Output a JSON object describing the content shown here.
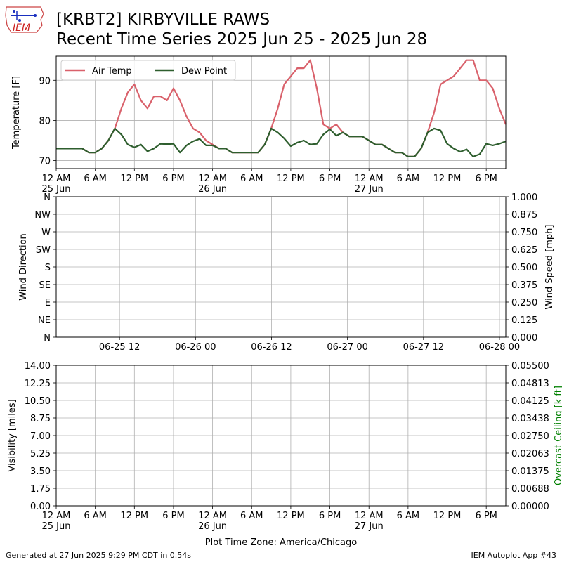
{
  "header": {
    "title_line1": "[KRBT2] KIRBYVILLE RAWS",
    "title_line2": "Recent Time Series 2025 Jun 25 - 2025 Jun 28",
    "logo_text": "IEM"
  },
  "footer": {
    "generated": "Generated at 27 Jun 2025 9:29 PM CDT in 0.54s",
    "app": "IEM Autoplot App #43"
  },
  "colors": {
    "air_temp": "#d9616b",
    "dew_point": "#2e5e2e",
    "grid": "#b0b0b0",
    "ceiling_label": "#008000"
  },
  "chart_data": [
    {
      "type": "line",
      "ylabel": "Temperature [F]",
      "ylim": [
        68,
        96
      ],
      "yticks": [
        70,
        80,
        90
      ],
      "xlim_hours": [
        0,
        69
      ],
      "xtick_labels": [
        {
          "h": 0,
          "label": "12 AM",
          "sub": "25 Jun"
        },
        {
          "h": 6,
          "label": "6 AM"
        },
        {
          "h": 12,
          "label": "12 PM"
        },
        {
          "h": 18,
          "label": "6 PM"
        },
        {
          "h": 24,
          "label": "12 AM",
          "sub": "26 Jun"
        },
        {
          "h": 30,
          "label": "6 AM"
        },
        {
          "h": 36,
          "label": "12 PM"
        },
        {
          "h": 42,
          "label": "6 PM"
        },
        {
          "h": 48,
          "label": "12 AM",
          "sub": "27 Jun"
        },
        {
          "h": 54,
          "label": "6 AM"
        },
        {
          "h": 60,
          "label": "12 PM"
        },
        {
          "h": 66,
          "label": "6 PM"
        }
      ],
      "legend": "top-left",
      "grid": true,
      "series": [
        {
          "name": "Air Temp",
          "x": [
            0,
            1,
            2,
            3,
            4,
            5,
            6,
            7,
            8,
            9,
            10,
            11,
            12,
            13,
            14,
            15,
            16,
            17,
            18,
            19,
            20,
            21,
            22,
            23,
            24,
            25,
            26,
            27,
            28,
            29,
            30,
            31,
            32,
            33,
            34,
            35,
            36,
            37,
            38,
            39,
            40,
            41,
            42,
            43,
            44,
            45,
            46,
            47,
            48,
            49,
            50,
            51,
            52,
            53,
            54,
            55,
            56,
            57,
            58,
            59,
            60,
            61,
            62,
            63,
            64,
            65,
            66,
            67,
            68,
            69
          ],
          "y": [
            73,
            73,
            73,
            73,
            73,
            72,
            72,
            73,
            75,
            78,
            83,
            87,
            89,
            85,
            83,
            86,
            86,
            85,
            88,
            85,
            81,
            78,
            77,
            75,
            74,
            73,
            73,
            72,
            72,
            72,
            72,
            72,
            74,
            78,
            83,
            89,
            91,
            93,
            93,
            95,
            88,
            79,
            78,
            79,
            77,
            76,
            76,
            76,
            75,
            74,
            74,
            73,
            72,
            72,
            71,
            71,
            73,
            77,
            82,
            89,
            90,
            91,
            93,
            95,
            95,
            90,
            90,
            88,
            83,
            79
          ]
        },
        {
          "name": "Dew Point",
          "x": [
            0,
            1,
            2,
            3,
            4,
            5,
            6,
            7,
            8,
            9,
            10,
            11,
            12,
            13,
            14,
            15,
            16,
            17,
            18,
            19,
            20,
            21,
            22,
            23,
            24,
            25,
            26,
            27,
            28,
            29,
            30,
            31,
            32,
            33,
            34,
            35,
            36,
            37,
            38,
            39,
            40,
            41,
            42,
            43,
            44,
            45,
            46,
            47,
            48,
            49,
            50,
            51,
            52,
            53,
            54,
            55,
            56,
            57,
            58,
            59,
            60,
            61,
            62,
            63,
            64,
            65,
            66,
            67,
            68,
            69
          ],
          "y": [
            73,
            73,
            73,
            73,
            73,
            72,
            72,
            73,
            75,
            78,
            76.5,
            74,
            73.3,
            74,
            72.3,
            73,
            74.2,
            74.1,
            74.2,
            72,
            73.8,
            74.8,
            75.4,
            73.8,
            73.8,
            73,
            73,
            72,
            72,
            72,
            72,
            72,
            74,
            78,
            77,
            75.5,
            73.6,
            74.5,
            75,
            74,
            74.2,
            76.5,
            77.8,
            76.2,
            77,
            76,
            76,
            76,
            75,
            74,
            74,
            73,
            72,
            72,
            71,
            71,
            73,
            77,
            78,
            77.5,
            74.2,
            73,
            72.2,
            72.8,
            71,
            71.6,
            74.2,
            73.8,
            74.2,
            74.8
          ]
        }
      ]
    },
    {
      "type": "line",
      "ylabel": "Wind Direction",
      "y2label": "Wind Speed [mph]",
      "ylim": [
        0,
        360
      ],
      "ytick_labels": [
        "N",
        "NE",
        "E",
        "SE",
        "S",
        "SW",
        "W",
        "NW",
        "N"
      ],
      "y2lim": [
        0,
        1
      ],
      "y2tick_labels": [
        "0.000",
        "0.125",
        "0.250",
        "0.375",
        "0.500",
        "0.625",
        "0.750",
        "0.875",
        "1.000"
      ],
      "xtick_labels": [
        {
          "h": 12,
          "label": "06-25 12"
        },
        {
          "h": 24,
          "label": "06-26 00"
        },
        {
          "h": 36,
          "label": "06-26 12"
        },
        {
          "h": 48,
          "label": "06-27 00"
        },
        {
          "h": 60,
          "label": "06-27 12"
        },
        {
          "h": 72,
          "label": "06-28 00"
        }
      ],
      "xlim_hours": [
        2,
        73
      ],
      "grid": true,
      "series": []
    },
    {
      "type": "line",
      "ylabel": "Visibility [miles]",
      "y2label": "Overcast Ceiling [k ft]",
      "ylim": [
        0,
        14
      ],
      "ytick_labels": [
        "0.00",
        "1.75",
        "3.50",
        "5.25",
        "7.00",
        "8.75",
        "10.50",
        "12.25",
        "14.00"
      ],
      "y2lim": [
        0,
        0.055
      ],
      "y2tick_labels": [
        "0.00000",
        "0.00688",
        "0.01375",
        "0.02063",
        "0.02750",
        "0.03438",
        "0.04125",
        "0.04813",
        "0.05500"
      ],
      "xlim_hours": [
        0,
        69
      ],
      "xtick_labels": [
        {
          "h": 0,
          "label": "12 AM",
          "sub": "25 Jun"
        },
        {
          "h": 6,
          "label": "6 AM"
        },
        {
          "h": 12,
          "label": "12 PM"
        },
        {
          "h": 18,
          "label": "6 PM"
        },
        {
          "h": 24,
          "label": "12 AM",
          "sub": "26 Jun"
        },
        {
          "h": 30,
          "label": "6 AM"
        },
        {
          "h": 36,
          "label": "12 PM"
        },
        {
          "h": 42,
          "label": "6 PM"
        },
        {
          "h": 48,
          "label": "12 AM",
          "sub": "27 Jun"
        },
        {
          "h": 54,
          "label": "6 AM"
        },
        {
          "h": 60,
          "label": "12 PM"
        },
        {
          "h": 66,
          "label": "6 PM"
        }
      ],
      "xlabel": "Plot Time Zone: America/Chicago",
      "grid": true,
      "series": []
    }
  ]
}
